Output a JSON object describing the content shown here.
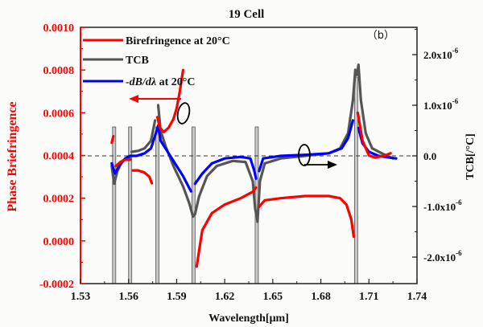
{
  "chart_data": {
    "type": "line",
    "title": "19 Cell",
    "panel_label": "（b）",
    "xlabel": "Wavelength[μm]",
    "ylabel_left": "Phase Briefringence",
    "ylabel_right": "TCB[/°C]",
    "xlim": [
      1.53,
      1.74
    ],
    "ylim_left": [
      -0.0002,
      0.001
    ],
    "ylim_right": [
      -2.5e-06,
      2.5e-06
    ],
    "x_ticks": [
      "1.53",
      "1.56",
      "1.59",
      "1.62",
      "1.65",
      "1.68",
      "1.71",
      "1.74"
    ],
    "x_tick_values": [
      1.53,
      1.56,
      1.59,
      1.62,
      1.65,
      1.68,
      1.71,
      1.74
    ],
    "left_ticks": [
      "0.0010",
      "0.0008",
      "0.0006",
      "0.0004",
      "0.0002",
      "0.0000",
      "-0.0002"
    ],
    "left_tick_values": [
      0.001,
      0.0008,
      0.0006,
      0.0004,
      0.0002,
      0.0,
      -0.0002
    ],
    "right_ticks": [
      {
        "base": "2.0x10",
        "exp": "-6",
        "value": 2e-06
      },
      {
        "base": "1.0x10",
        "exp": "-6",
        "value": 1e-06
      },
      {
        "base": "0.0",
        "exp": "",
        "value": 0
      },
      {
        "base": "-1.0x10",
        "exp": "-6",
        "value": -1e-06
      },
      {
        "base": "-2.0x10",
        "exp": "-6",
        "value": -2e-06
      }
    ],
    "grid": false,
    "legend_position": "top-left",
    "legend": [
      {
        "label": "Birefringence at 20°C",
        "color": "#ff0000"
      },
      {
        "label": "TCB",
        "color": "#555555"
      },
      {
        "label": "-dB/dλ at 20°C",
        "color": "#0000ff",
        "italic_part": "-dB/dλ",
        "rest": " at 20°C"
      }
    ],
    "reference_line": {
      "axis": "right",
      "value": 0,
      "style": "dashed"
    },
    "resonance_markers_um": [
      1.551,
      1.561,
      1.578,
      1.6005,
      1.64,
      1.702
    ],
    "series": [
      {
        "name": "Birefringence at 20°C",
        "axis": "left",
        "color": "#ff0000",
        "segments": [
          [
            [
              1.5495,
              0.00046
            ],
            [
              1.5505,
              0.00049
            ]
          ],
          [
            [
              1.552,
              0.00035
            ],
            [
              1.555,
              0.00037
            ],
            [
              1.558,
              0.00038
            ],
            [
              1.561,
              0.00038
            ]
          ],
          [
            [
              1.5625,
              0.00033
            ],
            [
              1.566,
              0.00033
            ],
            [
              1.57,
              0.00032
            ],
            [
              1.573,
              0.0003
            ],
            [
              1.5745,
              0.00027
            ]
          ],
          [
            [
              1.578,
              0.00058
            ],
            [
              1.5795,
              0.00053
            ],
            [
              1.582,
              0.00051
            ],
            [
              1.585,
              0.00053
            ],
            [
              1.588,
              0.00057
            ],
            [
              1.59,
              0.00062
            ],
            [
              1.592,
              0.0007
            ],
            [
              1.594,
              0.0008
            ]
          ],
          [
            [
              1.6025,
              -0.00012
            ],
            [
              1.606,
              5e-05
            ],
            [
              1.612,
              0.00013
            ],
            [
              1.62,
              0.00017
            ],
            [
              1.63,
              0.0002
            ],
            [
              1.6375,
              0.00023
            ],
            [
              1.6395,
              0.00025
            ]
          ],
          [
            [
              1.6415,
              0.00016
            ],
            [
              1.645,
              0.00019
            ],
            [
              1.655,
              0.0002
            ],
            [
              1.67,
              0.00021
            ],
            [
              1.685,
              0.00021
            ],
            [
              1.692,
              0.0002
            ],
            [
              1.696,
              0.00017
            ],
            [
              1.699,
              0.0001
            ],
            [
              1.7005,
              2e-05
            ]
          ],
          [
            [
              1.703,
              0.0006
            ],
            [
              1.706,
              0.00047
            ],
            [
              1.71,
              0.0004
            ],
            [
              1.714,
              0.00039
            ],
            [
              1.72,
              0.0004
            ],
            [
              1.7235,
              0.00041
            ]
          ]
        ]
      },
      {
        "name": "TCB",
        "axis": "right",
        "color": "#555555",
        "segments": [
          [
            [
              1.5495,
              -2e-07
            ],
            [
              1.551,
              -5.5e-07
            ],
            [
              1.553,
              -3e-07
            ],
            [
              1.556,
              -1e-07
            ],
            [
              1.559,
              -5e-08
            ],
            [
              1.561,
              -5e-08
            ]
          ],
          [
            [
              1.562,
              8e-08
            ],
            [
              1.566,
              1e-07
            ],
            [
              1.57,
              1.5e-07
            ],
            [
              1.574,
              3e-07
            ],
            [
              1.5765,
              7e-07
            ]
          ],
          [
            [
              1.5785,
              1e-06
            ],
            [
              1.58,
              5e-07
            ],
            [
              1.583,
              2e-07
            ],
            [
              1.588,
              -2e-07
            ],
            [
              1.594,
              -6e-07
            ],
            [
              1.598,
              -9.5e-07
            ],
            [
              1.6002,
              -1.2e-06
            ],
            [
              1.6015,
              -1.15e-06
            ],
            [
              1.604,
              -8e-07
            ],
            [
              1.609,
              -4e-07
            ],
            [
              1.615,
              -2e-07
            ],
            [
              1.625,
              -1e-07
            ],
            [
              1.633,
              -1.2e-07
            ],
            [
              1.6375,
              -5e-07
            ],
            [
              1.639,
              -1.05e-06
            ],
            [
              1.64,
              -1.2e-06
            ],
            [
              1.6405,
              -1.3e-06
            ],
            [
              1.642,
              -5e-07
            ],
            [
              1.645,
              -1.5e-07
            ],
            [
              1.655,
              -5e-08
            ],
            [
              1.67,
              0.0
            ],
            [
              1.685,
              5e-08
            ],
            [
              1.692,
              1.5e-07
            ],
            [
              1.697,
              4.5e-07
            ],
            [
              1.7,
              1.1e-06
            ],
            [
              1.7015,
              1.7e-06
            ],
            [
              1.7025,
              1.6e-06
            ],
            [
              1.7035,
              1.8e-06
            ],
            [
              1.705,
              1.1e-06
            ],
            [
              1.708,
              4.5e-07
            ],
            [
              1.712,
              1.5e-07
            ],
            [
              1.718,
              5e-08
            ],
            [
              1.725,
              -5e-08
            ]
          ]
        ]
      },
      {
        "name": "-dB/dλ at 20°C",
        "axis": "right",
        "color": "#0000ff",
        "segments": [
          [
            [
              1.5495,
              -1.5e-07
            ],
            [
              1.5515,
              -3.5e-07
            ],
            [
              1.554,
              -2e-07
            ],
            [
              1.558,
              -5e-08
            ],
            [
              1.561,
              0.0
            ],
            [
              1.565,
              0.0
            ],
            [
              1.57,
              5e-08
            ],
            [
              1.574,
              1.5e-07
            ],
            [
              1.577,
              4.5e-07
            ],
            [
              1.5785,
              6e-07
            ],
            [
              1.58,
              3e-07
            ],
            [
              1.584,
              1e-07
            ],
            [
              1.589,
              -1.5e-07
            ],
            [
              1.594,
              -4e-07
            ],
            [
              1.599,
              -7e-07
            ]
          ],
          [
            [
              1.6015,
              -5.5e-07
            ],
            [
              1.606,
              -3.5e-07
            ],
            [
              1.612,
              -1.5e-07
            ],
            [
              1.62,
              -5e-08
            ],
            [
              1.63,
              -2e-08
            ],
            [
              1.636,
              -5e-08
            ],
            [
              1.6385,
              -3e-07
            ],
            [
              1.6395,
              -4.5e-07
            ]
          ],
          [
            [
              1.6415,
              -3e-07
            ],
            [
              1.644,
              -5e-08
            ],
            [
              1.655,
              0.0
            ],
            [
              1.67,
              2e-08
            ],
            [
              1.685,
              5e-08
            ],
            [
              1.693,
              1.5e-07
            ],
            [
              1.697,
              3.5e-07
            ],
            [
              1.7,
              7e-07
            ]
          ],
          [
            [
              1.7035,
              5.5e-07
            ],
            [
              1.706,
              2.5e-07
            ],
            [
              1.71,
              8e-08
            ],
            [
              1.716,
              0.0
            ],
            [
              1.722,
              -3e-08
            ],
            [
              1.727,
              -5e-08
            ]
          ]
        ]
      }
    ],
    "annotations": [
      {
        "text": "arrow-left",
        "meaning": "red curve uses left axis",
        "type": "ellipse-arrow"
      },
      {
        "text": "arrow-right",
        "meaning": "TCB curves use right axis",
        "type": "ellipse-arrow"
      }
    ]
  }
}
